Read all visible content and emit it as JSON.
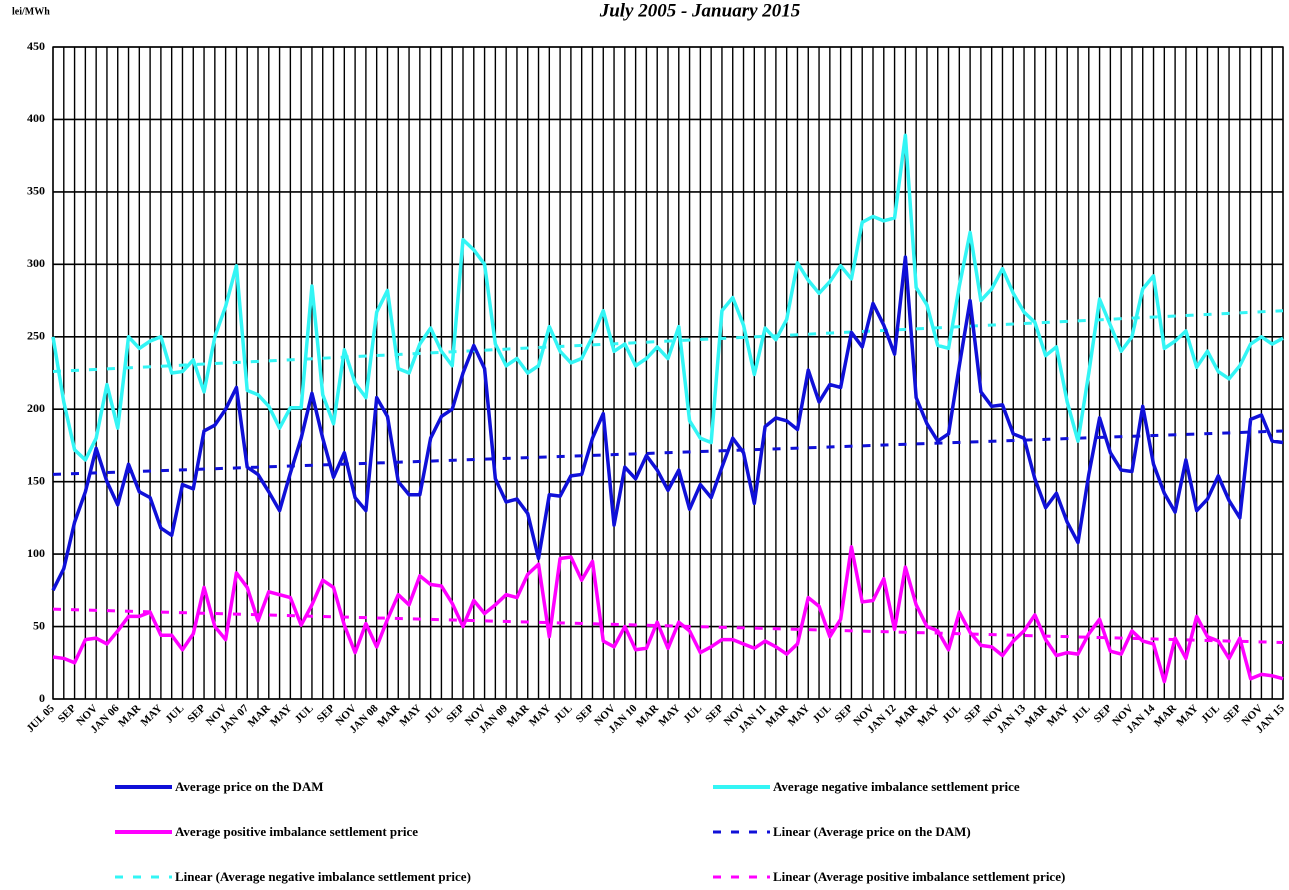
{
  "chart_data": {
    "type": "line",
    "title": "July 2005 - January 2015",
    "y_label": "lei/MWh",
    "categories": [
      "JUL 05",
      null,
      "SEP",
      null,
      "NOV",
      null,
      "JAN 06",
      null,
      "MAR",
      null,
      "MAY",
      null,
      "JUL",
      null,
      "SEP",
      null,
      "NOV",
      null,
      "JAN 07",
      null,
      "MAR",
      null,
      "MAY",
      null,
      "JUL",
      null,
      "SEP",
      null,
      "NOV",
      null,
      "JAN 08",
      null,
      "MAR",
      null,
      "MAY",
      null,
      "JUL",
      null,
      "SEP",
      null,
      "NOV",
      null,
      "JAN 09",
      null,
      "MAR",
      null,
      "MAY",
      null,
      "JUL",
      null,
      "SEP",
      null,
      "NOV",
      null,
      "JAN 10",
      null,
      "MAR",
      null,
      "MAY",
      null,
      "JUL",
      null,
      "SEP",
      null,
      "NOV",
      null,
      "JAN 11",
      null,
      "MAR",
      null,
      "MAY",
      null,
      "JUL",
      null,
      "SEP",
      null,
      "NOV",
      null,
      "JAN 12",
      null,
      "MAR",
      null,
      "MAY",
      null,
      "JUL",
      null,
      "SEP",
      null,
      "NOV",
      null,
      "JAN 13",
      null,
      "MAR",
      null,
      "MAY",
      null,
      "JUL",
      null,
      "SEP",
      null,
      "NOV",
      null,
      "JAN 14",
      null,
      "MAR",
      null,
      "MAY",
      null,
      "JUL",
      null,
      "SEP",
      null,
      "NOV",
      null,
      "JAN 15"
    ],
    "series": [
      {
        "name": "Average price on the DAM",
        "color": "#1010d8",
        "values": [
          75,
          90,
          122,
          143,
          173,
          150,
          134,
          162,
          143,
          139,
          118,
          113,
          148,
          145,
          185,
          189,
          200,
          215,
          160,
          155,
          143,
          130,
          156,
          180,
          211,
          180,
          153,
          170,
          139,
          130,
          208,
          195,
          150,
          141,
          141,
          180,
          195,
          200,
          225,
          244,
          228,
          152,
          136,
          138,
          128,
          97,
          141,
          140,
          154,
          155,
          180,
          197,
          120,
          160,
          152,
          168,
          158,
          144,
          158,
          131,
          148,
          139,
          160,
          180,
          170,
          135,
          188,
          194,
          192,
          186,
          227,
          205,
          217,
          215,
          253,
          243,
          273,
          258,
          238,
          305,
          208,
          190,
          178,
          183,
          230,
          275,
          212,
          202,
          203,
          183,
          180,
          152,
          132,
          142,
          122,
          108,
          155,
          194,
          170,
          158,
          157,
          202,
          162,
          142,
          129,
          165,
          130,
          138,
          154,
          137,
          125,
          193,
          196,
          178,
          177
        ]
      },
      {
        "name": "Average negative imbalance settlement price",
        "color": "#33f5f5",
        "values": [
          250,
          205,
          172,
          165,
          180,
          217,
          187,
          250,
          242,
          247,
          250,
          225,
          226,
          234,
          212,
          250,
          271,
          299,
          213,
          210,
          202,
          187,
          201,
          201,
          285,
          210,
          190,
          241,
          218,
          208,
          267,
          282,
          228,
          225,
          245,
          256,
          240,
          230,
          317,
          310,
          300,
          245,
          230,
          235,
          225,
          230,
          257,
          240,
          232,
          235,
          250,
          268,
          240,
          245,
          230,
          235,
          243,
          235,
          257,
          192,
          180,
          177,
          268,
          277,
          258,
          224,
          256,
          248,
          262,
          301,
          289,
          280,
          288,
          299,
          290,
          329,
          333,
          330,
          332,
          389,
          284,
          272,
          244,
          242,
          285,
          322,
          275,
          283,
          297,
          280,
          267,
          260,
          237,
          243,
          205,
          178,
          225,
          276,
          258,
          240,
          250,
          283,
          292,
          242,
          247,
          254,
          229,
          240,
          226,
          221,
          230,
          245,
          250,
          245,
          249
        ]
      },
      {
        "name": "Average positive imbalance settlement price",
        "color": "#ff00ff",
        "values": [
          29,
          28,
          25,
          41,
          42,
          38,
          47,
          57,
          57,
          60,
          44,
          44,
          34,
          45,
          77,
          50,
          41,
          87,
          77,
          54,
          74,
          72,
          70,
          51,
          65,
          82,
          77,
          51,
          32,
          52,
          36,
          55,
          72,
          65,
          85,
          79,
          78,
          66,
          50,
          68,
          59,
          65,
          72,
          70,
          86,
          93,
          43,
          97,
          98,
          82,
          95,
          40,
          36,
          50,
          34,
          35,
          53,
          35,
          53,
          47,
          32,
          36,
          41,
          41,
          38,
          35,
          40,
          36,
          31,
          38,
          70,
          64,
          43,
          55,
          105,
          67,
          68,
          83,
          48,
          91,
          65,
          50,
          47,
          34,
          60,
          46,
          37,
          36,
          30,
          40,
          47,
          58,
          41,
          30,
          32,
          31,
          45,
          55,
          33,
          31,
          47,
          40,
          38,
          12,
          42,
          28,
          57,
          43,
          40,
          28,
          42,
          14,
          17,
          16,
          14
        ]
      }
    ],
    "trends": [
      {
        "name": "Linear (Average price on the DAM)",
        "color": "#1010d8",
        "ends": [
          155,
          185
        ]
      },
      {
        "name": "Linear (Average negative imbalance settlement price)",
        "color": "#33f5f5",
        "ends": [
          226,
          268
        ]
      },
      {
        "name": "Linear (Average positive imbalance settlement price)",
        "color": "#ff00ff",
        "ends": [
          62,
          39
        ]
      }
    ],
    "ylim": [
      0,
      450
    ],
    "yticks": [
      0,
      50,
      100,
      150,
      200,
      250,
      300,
      350,
      400,
      450
    ],
    "grid": true
  }
}
